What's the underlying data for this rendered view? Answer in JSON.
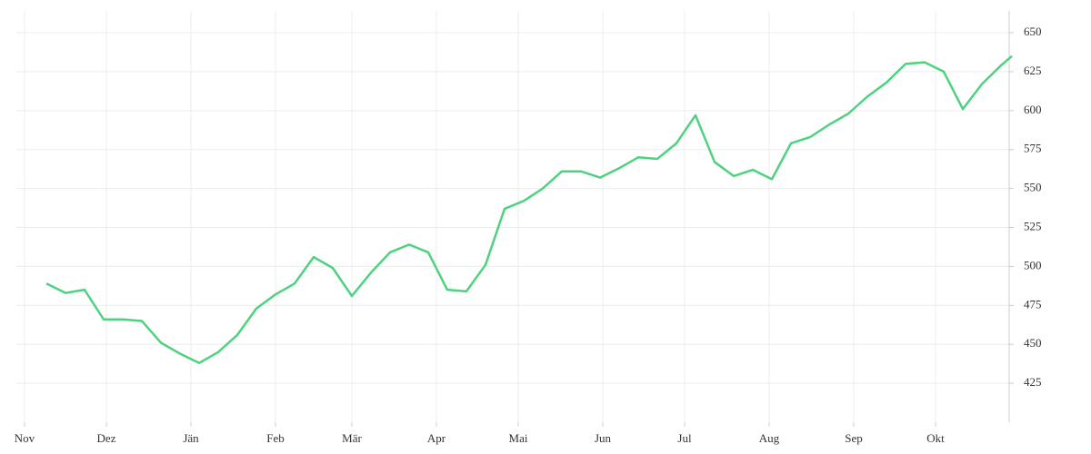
{
  "chart_data": {
    "type": "line",
    "x": [
      8,
      15,
      22,
      29,
      36,
      43,
      50,
      57,
      64,
      71,
      78,
      85,
      92,
      99,
      106,
      113,
      120,
      127,
      134,
      141,
      148,
      155,
      162,
      169,
      176,
      183,
      190,
      197,
      204,
      211,
      218,
      225,
      232,
      239,
      246,
      253,
      260,
      267,
      274,
      281,
      288,
      295,
      302,
      309,
      316,
      323,
      330,
      337,
      344,
      351,
      358,
      362
    ],
    "series": [
      {
        "color": "#4fd27f",
        "values": [
          489,
          483,
          485,
          466,
          466,
          465,
          451,
          444,
          438,
          445,
          456,
          473,
          482,
          489,
          506,
          499,
          481,
          496,
          509,
          514,
          509,
          485,
          484,
          501,
          537,
          542,
          550,
          561,
          561,
          557,
          563,
          570,
          569,
          579,
          597,
          567,
          558,
          562,
          556,
          579,
          583,
          591,
          598,
          609,
          618,
          630,
          631,
          625,
          601,
          617,
          629,
          635
        ]
      }
    ],
    "xlim": [
      -3,
      361
    ],
    "xticks": [
      {
        "value": 0,
        "label": "Nov"
      },
      {
        "value": 30,
        "label": "Dez"
      },
      {
        "value": 61,
        "label": "Jän"
      },
      {
        "value": 92,
        "label": "Feb"
      },
      {
        "value": 120,
        "label": "Mär"
      },
      {
        "value": 151,
        "label": "Apr"
      },
      {
        "value": 181,
        "label": "Mai"
      },
      {
        "value": 212,
        "label": "Jun"
      },
      {
        "value": 242,
        "label": "Jul"
      },
      {
        "value": 273,
        "label": "Aug"
      },
      {
        "value": 304,
        "label": "Sep"
      },
      {
        "value": 334,
        "label": "Okt"
      }
    ],
    "ylim": [
      400,
      664
    ],
    "yticks": [
      425,
      450,
      475,
      500,
      525,
      550,
      575,
      600,
      625,
      650
    ],
    "grid": true
  }
}
